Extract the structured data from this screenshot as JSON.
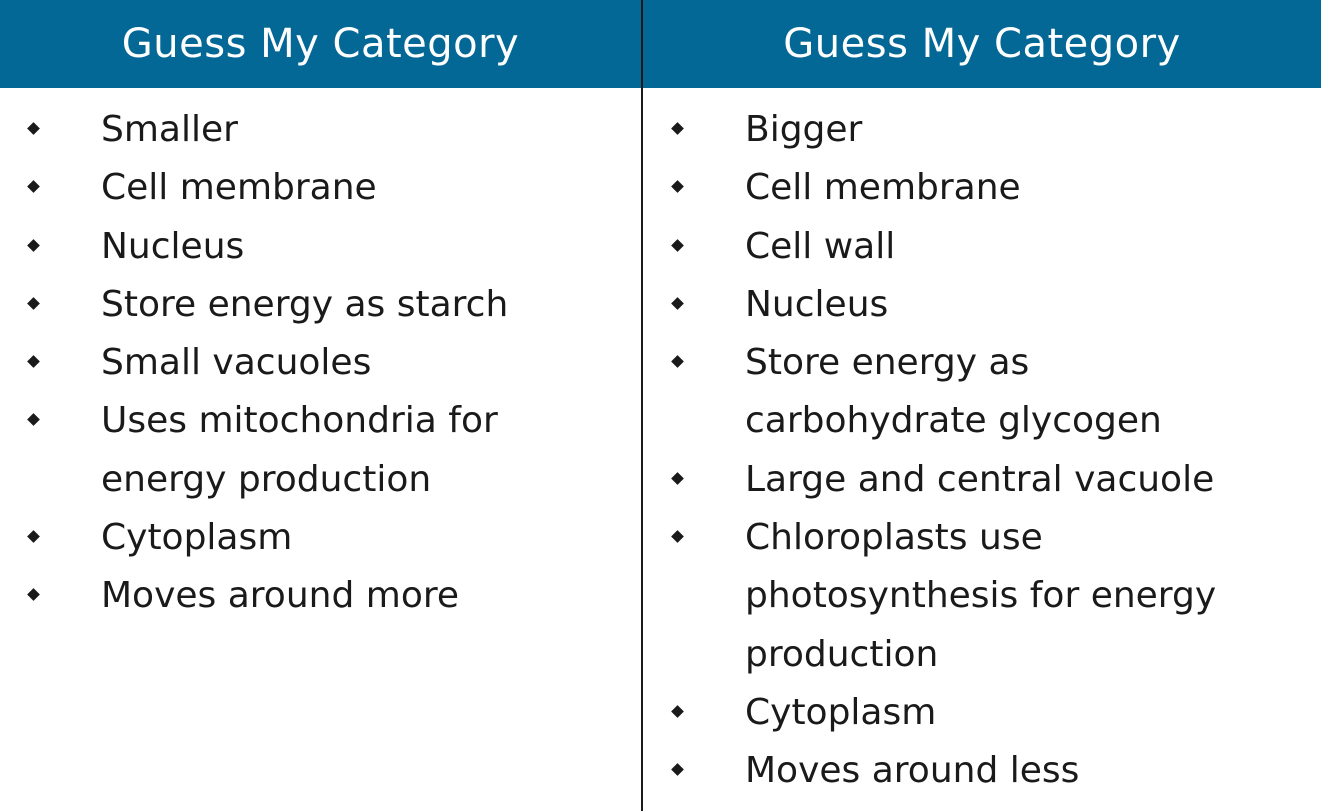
{
  "columns": [
    {
      "title": "Guess My Category",
      "items": [
        "Smaller",
        "Cell membrane",
        "Nucleus",
        "Store energy as starch",
        "Small vacuoles",
        "Uses mitochondria for energy production",
        "Cytoplasm",
        "Moves around more"
      ]
    },
    {
      "title": "Guess My Category",
      "items": [
        "Bigger",
        "Cell membrane",
        "Cell wall",
        "Nucleus",
        "Store energy as carbohydrate glycogen",
        "Large and central vacuole",
        "Chloroplasts use photosynthesis for energy production",
        "Cytoplasm",
        "Moves around less"
      ]
    }
  ],
  "colors": {
    "header_bg": "#036895",
    "header_text": "#ffffff",
    "divider": "#1a1a1a"
  }
}
